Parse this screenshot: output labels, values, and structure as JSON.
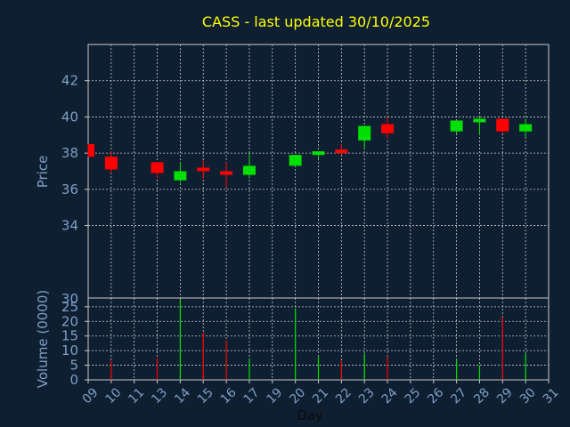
{
  "chart_data": {
    "type": "candlestick",
    "title": "CASS - last updated 30/10/2025",
    "xlabel": "Day",
    "price_ylabel": "Price",
    "volume_ylabel": "Volume (0000)",
    "x_ticks": [
      "09",
      "10",
      "11",
      "13",
      "14",
      "15",
      "16",
      "17",
      "19",
      "20",
      "21",
      "22",
      "23",
      "24",
      "25",
      "26",
      "27",
      "28",
      "29",
      "30",
      "31"
    ],
    "price_ylim": [
      30,
      44
    ],
    "price_ticks": [
      34,
      36,
      38,
      40,
      42
    ],
    "volume_ylim": [
      0,
      28
    ],
    "volume_ticks": [
      0,
      5,
      10,
      15,
      20,
      25
    ],
    "volume_top_label": "30",
    "grid": true,
    "colors": {
      "background": "#0f1f32",
      "title": "#ffff00",
      "axis_text": "#7f9fc4",
      "grid": "#c8c8c8",
      "up": "#00e000",
      "down": "#ff0000"
    },
    "candles": [
      {
        "day": "09",
        "open": 38.5,
        "close": 37.8,
        "high": 38.5,
        "low": 37.8
      },
      {
        "day": "10",
        "open": 37.8,
        "close": 37.1,
        "high": 38.1,
        "low": 36.9
      },
      {
        "day": "13",
        "open": 37.5,
        "close": 36.9,
        "high": 37.5,
        "low": 36.6
      },
      {
        "day": "14",
        "open": 36.5,
        "close": 37.0,
        "high": 37.5,
        "low": 36.4
      },
      {
        "day": "15",
        "open": 37.2,
        "close": 37.0,
        "high": 37.6,
        "low": 36.6
      },
      {
        "day": "16",
        "open": 37.0,
        "close": 36.8,
        "high": 37.5,
        "low": 36.1
      },
      {
        "day": "17",
        "open": 36.8,
        "close": 37.3,
        "high": 38.0,
        "low": 36.6
      },
      {
        "day": "20",
        "open": 37.3,
        "close": 37.9,
        "high": 37.9,
        "low": 37.3
      },
      {
        "day": "21",
        "open": 37.9,
        "close": 38.1,
        "high": 38.1,
        "low": 37.7
      },
      {
        "day": "22",
        "open": 38.2,
        "close": 38.0,
        "high": 38.5,
        "low": 37.9
      },
      {
        "day": "23",
        "open": 38.7,
        "close": 39.5,
        "high": 39.5,
        "low": 38.2
      },
      {
        "day": "24",
        "open": 39.6,
        "close": 39.1,
        "high": 40.0,
        "low": 38.8
      },
      {
        "day": "27",
        "open": 39.2,
        "close": 39.8,
        "high": 39.8,
        "low": 39.1
      },
      {
        "day": "28",
        "open": 39.7,
        "close": 39.9,
        "high": 40.0,
        "low": 39.0
      },
      {
        "day": "29",
        "open": 39.9,
        "close": 39.2,
        "high": 39.9,
        "low": 39.1
      },
      {
        "day": "30",
        "open": 39.2,
        "close": 39.6,
        "high": 39.9,
        "low": 38.9
      }
    ],
    "volumes": [
      {
        "day": "10",
        "value": 6.5,
        "direction": "down"
      },
      {
        "day": "13",
        "value": 7.5,
        "direction": "down"
      },
      {
        "day": "14",
        "value": 27.5,
        "direction": "up"
      },
      {
        "day": "15",
        "value": 16,
        "direction": "down"
      },
      {
        "day": "16",
        "value": 13.5,
        "direction": "down"
      },
      {
        "day": "17",
        "value": 7,
        "direction": "up"
      },
      {
        "day": "20",
        "value": 24.5,
        "direction": "up"
      },
      {
        "day": "21",
        "value": 8,
        "direction": "up"
      },
      {
        "day": "22",
        "value": 6.5,
        "direction": "down"
      },
      {
        "day": "23",
        "value": 9,
        "direction": "up"
      },
      {
        "day": "24",
        "value": 8,
        "direction": "down"
      },
      {
        "day": "27",
        "value": 7,
        "direction": "up"
      },
      {
        "day": "28",
        "value": 5,
        "direction": "up"
      },
      {
        "day": "29",
        "value": 21.5,
        "direction": "down"
      },
      {
        "day": "30",
        "value": 9,
        "direction": "up"
      }
    ]
  }
}
